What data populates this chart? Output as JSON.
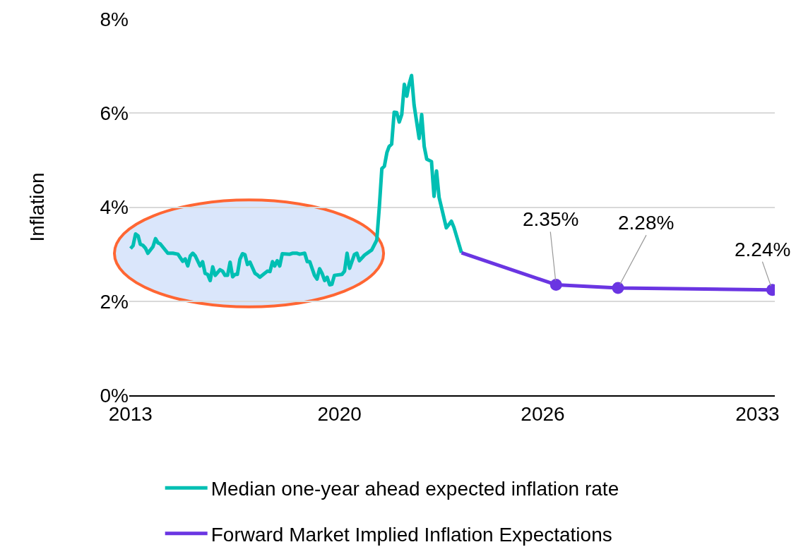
{
  "chart_data": {
    "type": "line",
    "ylabel": "Inflation",
    "xlim": [
      2013.41,
      2033.83
    ],
    "xticks": [
      {
        "value": 2013.45,
        "label": "2013"
      },
      {
        "value": 2020.06,
        "label": "2020"
      },
      {
        "value": 2026.49,
        "label": "2026"
      },
      {
        "value": 2033.28,
        "label": "2033"
      }
    ],
    "ylim": [
      0,
      8
    ],
    "yticks": [
      {
        "value": 0,
        "label": "0%"
      },
      {
        "value": 2,
        "label": "2%"
      },
      {
        "value": 4,
        "label": "4%"
      },
      {
        "value": 6,
        "label": "6%"
      },
      {
        "value": 8,
        "label": "8%"
      }
    ],
    "grid": "y",
    "legend": "bottom",
    "marker": "none",
    "line_style": "solid",
    "series": [
      {
        "name": "Median one-year ahead expected inflation rate",
        "color": "#00bfb3",
        "x": [
          2013.45,
          2013.53,
          2013.61,
          2013.69,
          2013.76,
          2013.84,
          2013.92,
          2014.0,
          2014.16,
          2014.24,
          2014.32,
          2014.39,
          2014.63,
          2014.79,
          2014.95,
          2015.1,
          2015.18,
          2015.26,
          2015.34,
          2015.42,
          2015.5,
          2015.65,
          2015.73,
          2015.81,
          2015.89,
          2015.97,
          2016.05,
          2016.13,
          2016.28,
          2016.36,
          2016.44,
          2016.52,
          2016.6,
          2016.68,
          2016.76,
          2016.83,
          2016.91,
          2016.99,
          2017.07,
          2017.15,
          2017.23,
          2017.39,
          2017.46,
          2017.54,
          2017.78,
          2017.86,
          2017.94,
          2018.01,
          2018.09,
          2018.17,
          2018.25,
          2018.49,
          2018.57,
          2018.72,
          2018.8,
          2018.96,
          2019.04,
          2019.12,
          2019.27,
          2019.35,
          2019.43,
          2019.51,
          2019.59,
          2019.67,
          2019.75,
          2019.82,
          2019.9,
          2020.14,
          2020.22,
          2020.3,
          2020.38,
          2020.53,
          2020.61,
          2020.69,
          2020.85,
          2021.08,
          2021.24,
          2021.32,
          2021.4,
          2021.48,
          2021.56,
          2021.63,
          2021.71,
          2021.79,
          2021.87,
          2021.95,
          2022.03,
          2022.11,
          2022.19,
          2022.26,
          2022.34,
          2022.42,
          2022.58,
          2022.66,
          2022.74,
          2022.82,
          2022.97,
          2023.05,
          2023.13,
          2023.21,
          2023.44,
          2023.6,
          2023.68,
          2023.92
        ],
        "values": [
          3.12,
          3.18,
          3.43,
          3.39,
          3.21,
          3.19,
          3.13,
          3.02,
          3.16,
          3.33,
          3.24,
          3.22,
          3.02,
          3.02,
          3.0,
          2.85,
          2.9,
          2.75,
          2.96,
          3.02,
          2.96,
          2.75,
          2.84,
          2.59,
          2.57,
          2.44,
          2.73,
          2.55,
          2.67,
          2.64,
          2.55,
          2.55,
          2.83,
          2.52,
          2.57,
          2.57,
          2.89,
          3.01,
          2.99,
          2.78,
          2.83,
          2.59,
          2.56,
          2.51,
          2.64,
          2.63,
          2.84,
          2.75,
          2.86,
          2.75,
          3.01,
          3.0,
          3.02,
          3.02,
          3.0,
          3.02,
          2.84,
          2.84,
          2.55,
          2.47,
          2.69,
          2.59,
          2.44,
          2.51,
          2.35,
          2.36,
          2.55,
          2.57,
          2.64,
          3.02,
          2.7,
          2.99,
          3.02,
          2.86,
          2.98,
          3.09,
          3.3,
          4.0,
          4.82,
          4.87,
          5.16,
          5.29,
          5.34,
          6.02,
          6.01,
          5.81,
          5.97,
          6.61,
          6.36,
          6.61,
          6.8,
          6.17,
          5.46,
          5.97,
          5.29,
          5.02,
          4.97,
          4.23,
          4.77,
          4.21,
          3.56,
          3.7,
          3.57,
          3.03
        ]
      },
      {
        "name": "Forward Market Implied Inflation Expectations",
        "color": "#6a35e2",
        "x": [
          2023.92,
          2026.91,
          2028.87,
          2033.75
        ],
        "values": [
          3.03,
          2.35,
          2.28,
          2.24
        ]
      },
      {
        "type": "scatter",
        "marker": "circle",
        "color": "#6a35e2",
        "x": [
          2026.91,
          2028.87,
          2033.75
        ],
        "values": [
          2.35,
          2.28,
          2.24
        ],
        "value_labels": [
          "2.35%",
          "2.28%",
          "2.24%"
        ]
      }
    ]
  }
}
